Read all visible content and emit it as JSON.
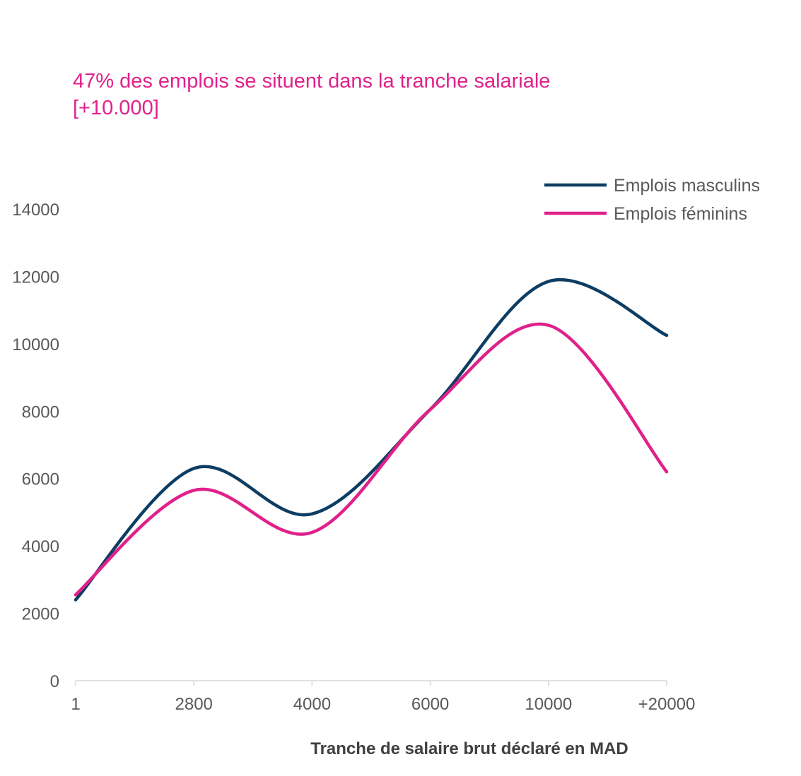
{
  "chart_data": {
    "type": "line",
    "title_lines": [
      "47% des emplois se situent dans la tranche salariale",
      "[+10.000]"
    ],
    "categories": [
      "1",
      "2800",
      "4000",
      "6000",
      "10000",
      "+20000"
    ],
    "series": [
      {
        "name": "Emplois masculins",
        "color": "#0d3d63",
        "values": [
          2400,
          6300,
          4950,
          8050,
          11850,
          10250
        ]
      },
      {
        "name": "Emplois féminins",
        "color": "#e0218a",
        "values": [
          2550,
          5650,
          4400,
          8050,
          10550,
          6200
        ]
      }
    ],
    "xlabel": "Tranche de salaire brut déclaré en MAD",
    "ylabel": "",
    "ylim": [
      0,
      14000
    ],
    "yticks": [
      0,
      2000,
      4000,
      6000,
      8000,
      10000,
      12000,
      14000
    ],
    "grid": false,
    "legend_position": "top-right",
    "smooth": true,
    "title_color": "#e0218a"
  }
}
